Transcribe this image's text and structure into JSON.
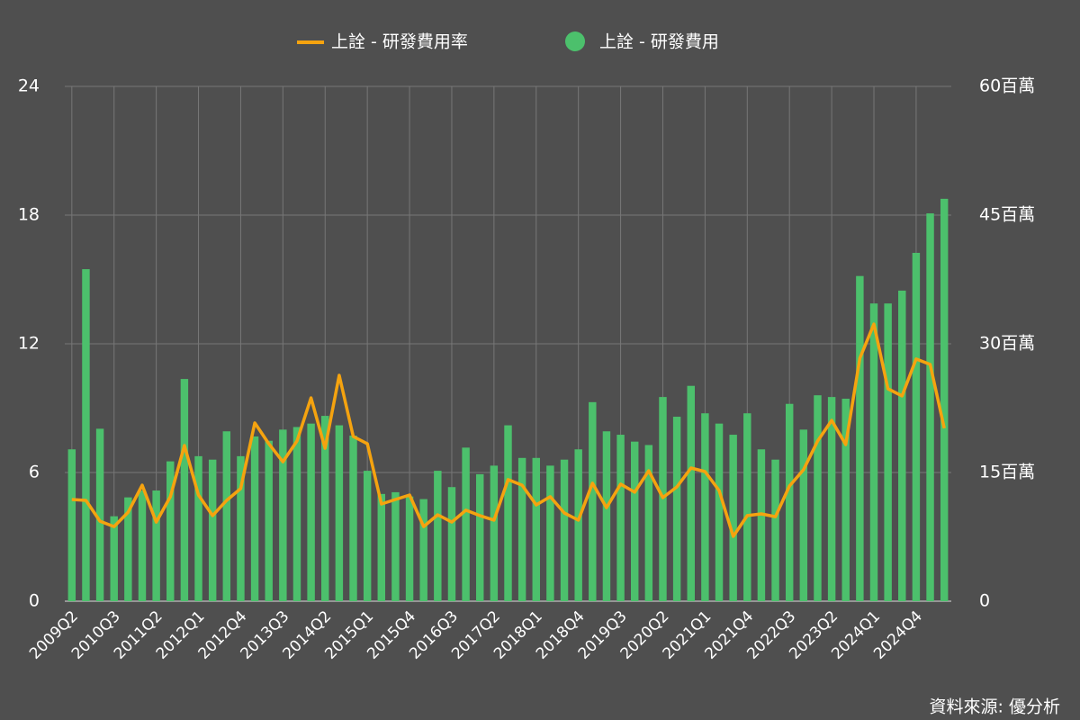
{
  "chart_data": {
    "type": "bar_line",
    "series": [
      {
        "name": "上詮 - 研發費用率",
        "type": "line",
        "color": "#f5a30f",
        "axis": "y",
        "values": [
          4.74,
          4.7,
          3.73,
          3.48,
          4.15,
          5.41,
          3.69,
          4.87,
          7.26,
          4.95,
          3.99,
          4.7,
          5.25,
          8.31,
          7.34,
          6.5,
          7.47,
          9.48,
          7.13,
          10.53,
          7.68,
          7.34,
          4.53,
          4.74,
          4.95,
          3.48,
          4.03,
          3.69,
          4.24,
          3.99,
          3.78,
          5.67,
          5.41,
          4.49,
          4.87,
          4.11,
          3.78,
          5.5,
          4.36,
          5.46,
          5.08,
          6.08,
          4.83,
          5.33,
          6.21,
          6.04,
          5.16,
          3.02,
          3.99,
          4.07,
          3.94,
          5.37,
          6.13,
          7.47,
          8.43,
          7.3,
          11.33,
          12.92,
          9.9,
          9.57,
          11.29,
          11.04,
          8.06
        ]
      },
      {
        "name": "上詮 - 研發費用",
        "type": "bar",
        "color": "#4cc06c",
        "axis": "y2",
        "values": [
          17.7,
          38.7,
          20.1,
          9.9,
          12.1,
          12.9,
          12.9,
          16.3,
          25.9,
          16.9,
          16.5,
          19.8,
          16.9,
          19.2,
          18.7,
          20.0,
          20.3,
          20.7,
          21.6,
          20.5,
          19.3,
          15.2,
          12.5,
          12.7,
          12.2,
          11.9,
          15.2,
          13.3,
          17.9,
          14.8,
          15.8,
          20.5,
          16.7,
          16.7,
          15.8,
          16.5,
          17.7,
          23.2,
          19.8,
          19.4,
          18.6,
          18.2,
          23.8,
          21.5,
          25.1,
          21.9,
          20.7,
          19.4,
          21.9,
          17.7,
          16.5,
          23.0,
          20.0,
          24.0,
          23.8,
          23.6,
          37.9,
          34.7,
          34.7,
          36.2,
          40.6,
          45.2,
          46.9
        ]
      }
    ],
    "categories": [
      "2009Q2",
      null,
      null,
      "2010Q3",
      null,
      null,
      "2011Q2",
      null,
      null,
      "2012Q1",
      null,
      null,
      "2012Q4",
      null,
      null,
      "2013Q3",
      null,
      null,
      "2014Q2",
      null,
      null,
      "2015Q1",
      null,
      null,
      "2015Q4",
      null,
      null,
      "2016Q3",
      null,
      null,
      "2017Q2",
      null,
      null,
      "2018Q1",
      null,
      null,
      "2018Q4",
      null,
      null,
      "2019Q3",
      null,
      null,
      "2020Q2",
      null,
      null,
      "2021Q1",
      null,
      null,
      "2021Q4",
      null,
      null,
      "2022Q3",
      null,
      null,
      "2023Q2",
      null,
      null,
      "2024Q1",
      null,
      null,
      "2024Q4",
      null,
      null
    ],
    "ylim": [
      0,
      24
    ],
    "yticks": [
      0,
      6,
      12,
      18,
      24
    ],
    "y2lim": [
      0,
      60
    ],
    "y2ticks": [
      0,
      {
        "value": 15,
        "label": "15百萬"
      },
      {
        "value": 30,
        "label": "30百萬"
      },
      {
        "value": 45,
        "label": "45百萬"
      },
      {
        "value": 60,
        "label": "60百萬"
      }
    ],
    "grid": true,
    "legend": "top",
    "source": "資料來源: 優分析"
  }
}
